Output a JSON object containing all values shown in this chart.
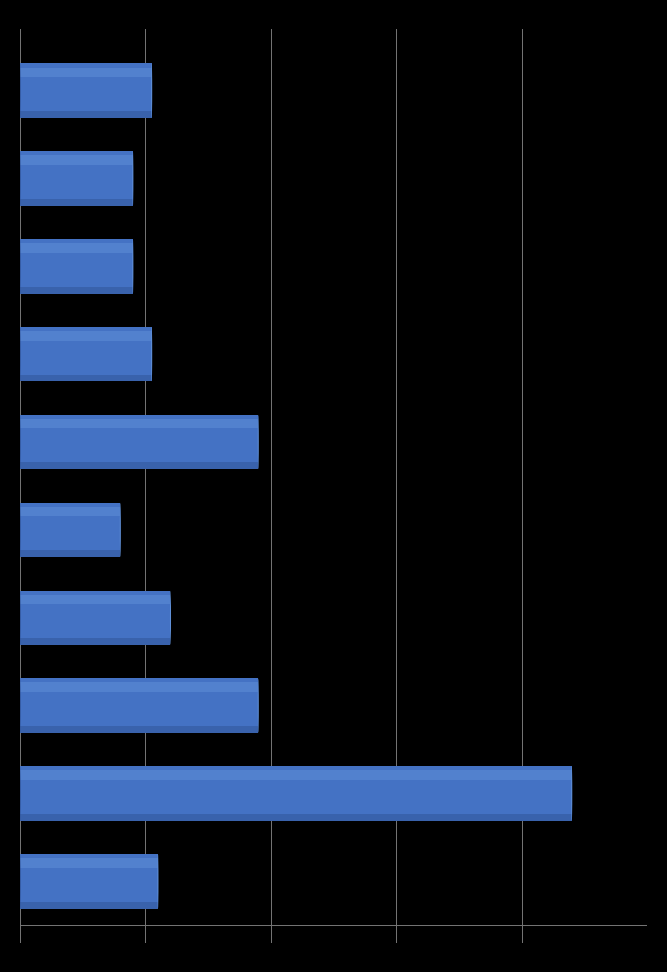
{
  "values": [
    21,
    18,
    18,
    21,
    38,
    16,
    24,
    38,
    88,
    22
  ],
  "bar_color_main": "#4472C4",
  "bar_color_light": "#6090D8",
  "bar_color_dark": "#2A4A8A",
  "bar_color_top": "#5580CC",
  "background_color": "#000000",
  "grid_color": "#666666",
  "xlim": [
    0,
    100
  ],
  "bar_height": 0.62,
  "figsize": [
    6.67,
    9.72
  ],
  "dpi": 100,
  "n_bars": 10
}
